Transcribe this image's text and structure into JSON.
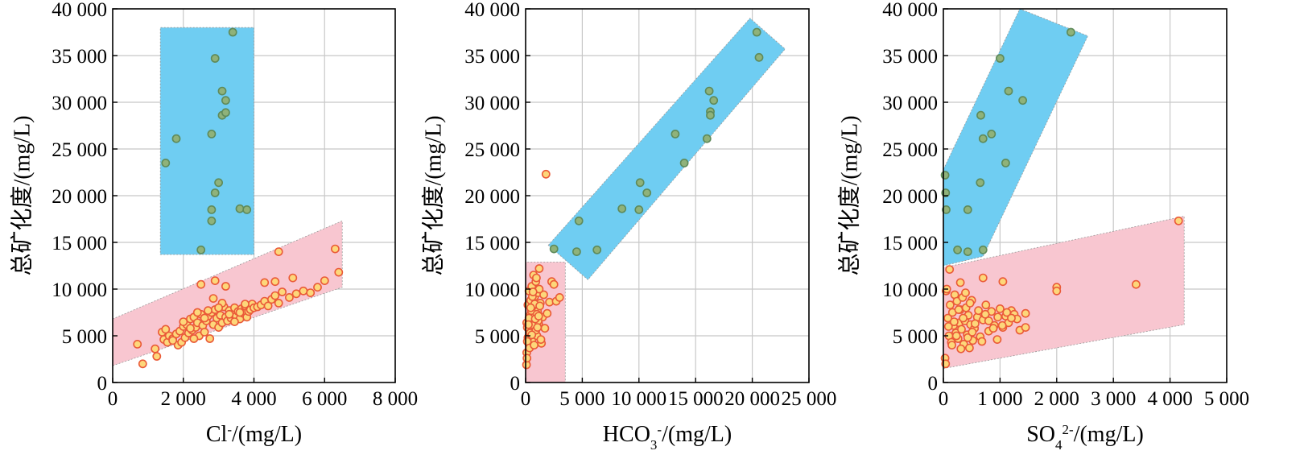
{
  "colors": {
    "high_zone_fill": "#6fcdf2",
    "low_zone_fill": "#f8c6d0",
    "high_point_fill": "#8fb27a",
    "high_point_stroke": "#5e8a5a",
    "low_point_fill": "#fdd77a",
    "low_point_stroke": "#ea5a38",
    "grid": "#c8c8c8"
  },
  "chart_data": [
    {
      "type": "scatter",
      "ylabel": "总矿化度/(mg/L)",
      "xlabel": "Cl⁻/(mg/L)",
      "xlim": [
        0,
        8000
      ],
      "ylim": [
        0,
        40000
      ],
      "xticks": [
        "0",
        "2 000",
        "4 000",
        "6 000",
        "8 000"
      ],
      "yticks": [
        "0",
        "5 000",
        "10 000",
        "15 000",
        "20 000",
        "25 000",
        "30 000",
        "35 000",
        "40 000"
      ],
      "grid": true,
      "zones": [
        {
          "group": "high",
          "polygon": [
            [
              1350,
              13700
            ],
            [
              4000,
              13700
            ],
            [
              4000,
              38000
            ],
            [
              1350,
              38000
            ]
          ]
        },
        {
          "group": "low",
          "polygon": [
            [
              0,
              1800
            ],
            [
              6500,
              10200
            ],
            [
              6500,
              17300
            ],
            [
              0,
              6800
            ]
          ]
        }
      ],
      "series": [
        {
          "group": "high",
          "x": [
            1500,
            1800,
            2500,
            2800,
            2900,
            2900,
            3000,
            3100,
            3100,
            3200,
            3200,
            3400,
            3600,
            3800,
            2800,
            2800
          ],
          "y": [
            23500,
            26100,
            14200,
            26600,
            20300,
            34700,
            21400,
            31200,
            28600,
            30200,
            28900,
            37500,
            18600,
            18500,
            17300,
            18500
          ]
        },
        {
          "group": "low",
          "x": [
            700,
            850,
            1200,
            1250,
            1400,
            1450,
            1500,
            1550,
            1600,
            1700,
            1800,
            1850,
            1900,
            1950,
            2000,
            2050,
            2100,
            2150,
            2200,
            2250,
            2300,
            2350,
            2400,
            2450,
            2500,
            2550,
            2600,
            2650,
            2700,
            2750,
            2800,
            2850,
            2900,
            2950,
            3000,
            3050,
            3100,
            3150,
            3200,
            3250,
            3300,
            3350,
            3400,
            3450,
            3500,
            3550,
            3600,
            3650,
            3700,
            3750,
            3800,
            3850,
            3900,
            3950,
            4000,
            4100,
            4200,
            4300,
            4400,
            4500,
            4600,
            4700,
            4800,
            5000,
            5200,
            5400,
            5600,
            5800,
            6000,
            6300,
            6400,
            2500,
            2900,
            3200,
            4300,
            4600,
            4700,
            5100,
            2300,
            2200,
            2600,
            2850,
            3100,
            3300,
            3450,
            3750,
            1700,
            2000,
            2400,
            2700,
            3000,
            3600
          ],
          "y": [
            4100,
            2000,
            3600,
            2800,
            5400,
            4600,
            5700,
            4300,
            5000,
            4700,
            5200,
            4000,
            5500,
            4300,
            6000,
            4800,
            6200,
            5300,
            6800,
            5600,
            7000,
            5900,
            6400,
            5000,
            7300,
            6100,
            5400,
            6600,
            7100,
            4700,
            7500,
            6200,
            7800,
            6900,
            5900,
            7200,
            6400,
            8100,
            7000,
            6600,
            7700,
            6900,
            7300,
            8000,
            7100,
            7600,
            6800,
            7900,
            7400,
            8200,
            7000,
            7600,
            7800,
            8400,
            8000,
            8100,
            8300,
            8700,
            8200,
            8900,
            9300,
            8500,
            9700,
            9100,
            9500,
            9800,
            9600,
            10200,
            10900,
            14300,
            11800,
            10500,
            10900,
            10300,
            10700,
            10800,
            14000,
            11200,
            4700,
            5800,
            6900,
            9000,
            8500,
            7300,
            6500,
            8400,
            4500,
            6500,
            7500,
            7700,
            8000,
            7500
          ]
        }
      ]
    },
    {
      "type": "scatter",
      "ylabel": "总矿化度/(mg/L)",
      "xlabel": "HCO₃⁻/(mg/L)",
      "xlim": [
        0,
        25000
      ],
      "ylim": [
        0,
        40000
      ],
      "xticks": [
        "0",
        "5 000",
        "10 000",
        "15 000",
        "20 000",
        "25 000"
      ],
      "yticks": [
        "0",
        "5 000",
        "10 000",
        "15 000",
        "20 000",
        "25 000",
        "30 000",
        "35 000",
        "40 000"
      ],
      "grid": true,
      "zones": [
        {
          "group": "high",
          "polygon": [
            [
              2000,
              14700
            ],
            [
              19800,
              39000
            ],
            [
              22900,
              35700
            ],
            [
              5500,
              11000
            ]
          ]
        },
        {
          "group": "low",
          "polygon": [
            [
              0,
              0
            ],
            [
              3500,
              0
            ],
            [
              3500,
              12900
            ],
            [
              0,
              12900
            ]
          ]
        }
      ],
      "series": [
        {
          "group": "high",
          "x": [
            2500,
            4500,
            4700,
            6300,
            8500,
            10000,
            10100,
            10700,
            13200,
            14000,
            16000,
            16200,
            16300,
            16300,
            16600,
            20400,
            20600
          ],
          "y": [
            14300,
            14000,
            17300,
            14200,
            18600,
            18500,
            21400,
            20300,
            26600,
            23500,
            26100,
            31200,
            29000,
            28600,
            30200,
            37500,
            34800
          ]
        },
        {
          "group": "low",
          "x": [
            1800,
            100,
            150,
            200,
            250,
            300,
            350,
            400,
            450,
            500,
            550,
            600,
            650,
            700,
            750,
            800,
            850,
            900,
            950,
            1000,
            1050,
            1100,
            1150,
            1200,
            1300,
            1400,
            1500,
            1600,
            1700,
            1900,
            2100,
            2300,
            2500,
            2700,
            3000,
            200,
            300,
            400,
            500,
            600,
            700,
            800,
            900,
            1000,
            1100,
            1200,
            100,
            150,
            250,
            350,
            450,
            550,
            650,
            750,
            850,
            950,
            1050,
            1150,
            1250,
            1350,
            80,
            120
          ],
          "y": [
            22300,
            6400,
            5900,
            8300,
            4500,
            9800,
            5200,
            7200,
            8800,
            6000,
            10300,
            4700,
            7900,
            11500,
            5500,
            9200,
            6700,
            10800,
            8100,
            5000,
            7600,
            9600,
            6300,
            12200,
            8500,
            4200,
            7000,
            9400,
            5800,
            7400,
            8600,
            10800,
            10500,
            8700,
            9100,
            4800,
            6900,
            5300,
            7700,
            9200,
            6100,
            8400,
            5600,
            7300,
            6600,
            10000,
            3200,
            4400,
            6200,
            3700,
            8000,
            5100,
            9700,
            4000,
            6800,
            11200,
            5900,
            7100,
            8200,
            4600,
            1900,
            2600
          ]
        }
      ]
    },
    {
      "type": "scatter",
      "ylabel": "总矿化度/(mg/L)",
      "xlabel": "SO₄²⁻/(mg/L)",
      "xlim": [
        0,
        5000
      ],
      "ylim": [
        0,
        40000
      ],
      "xticks": [
        "0",
        "1 000",
        "2 000",
        "3 000",
        "4 000",
        "5 000"
      ],
      "yticks": [
        "0",
        "5 000",
        "10 000",
        "15 000",
        "20 000",
        "25 000",
        "30 000",
        "35 000",
        "40 000"
      ],
      "grid": true,
      "zones": [
        {
          "group": "high",
          "polygon": [
            [
              0,
              12500
            ],
            [
              0,
              22800
            ],
            [
              1350,
              40000
            ],
            [
              2550,
              37100
            ],
            [
              700,
              13500
            ]
          ]
        },
        {
          "group": "low",
          "polygon": [
            [
              0,
              1500
            ],
            [
              4250,
              6200
            ],
            [
              4250,
              17800
            ],
            [
              0,
              12300
            ]
          ]
        }
      ],
      "series": [
        {
          "group": "high",
          "x": [
            30,
            40,
            50,
            250,
            430,
            430,
            650,
            660,
            700,
            700,
            850,
            1000,
            1100,
            1150,
            1400,
            2250
          ],
          "y": [
            22200,
            20300,
            18500,
            14200,
            18500,
            14000,
            21400,
            28600,
            26100,
            14200,
            26600,
            34700,
            23500,
            31200,
            30200,
            37500
          ]
        },
        {
          "group": "low",
          "x": [
            4150,
            3400,
            2000,
            2000,
            1450,
            1200,
            1050,
            700,
            300,
            50,
            80,
            100,
            120,
            140,
            160,
            180,
            200,
            220,
            240,
            260,
            280,
            300,
            320,
            340,
            360,
            380,
            400,
            420,
            440,
            460,
            480,
            500,
            520,
            550,
            600,
            650,
            700,
            750,
            800,
            850,
            900,
            950,
            1000,
            1050,
            1100,
            1150,
            1250,
            1300,
            1350,
            1450,
            60,
            90,
            110,
            150,
            190,
            230,
            270,
            310,
            350,
            390,
            430,
            470,
            510,
            560,
            620,
            680,
            740,
            800,
            880,
            960,
            1040,
            1120,
            1200,
            30,
            40
          ],
          "y": [
            17300,
            10500,
            10200,
            9800,
            7400,
            7700,
            10800,
            11200,
            10700,
            9800,
            6900,
            5000,
            8300,
            4300,
            7500,
            6100,
            9400,
            5300,
            8700,
            4700,
            6400,
            7800,
            5700,
            9100,
            4100,
            6600,
            8000,
            5100,
            7200,
            3700,
            6200,
            8800,
            4500,
            5800,
            7000,
            4900,
            6700,
            8300,
            5500,
            7600,
            6100,
            4600,
            7900,
            5900,
            7100,
            6400,
            7300,
            6800,
            5600,
            5900,
            10000,
            6000,
            12100,
            4000,
            6500,
            5000,
            7800,
            3600,
            6900,
            9600,
            4800,
            8500,
            5400,
            6300,
            7700,
            4400,
            7300,
            6600,
            5800,
            7000,
            6100,
            7500,
            6900,
            2600,
            2000
          ]
        }
      ]
    }
  ]
}
